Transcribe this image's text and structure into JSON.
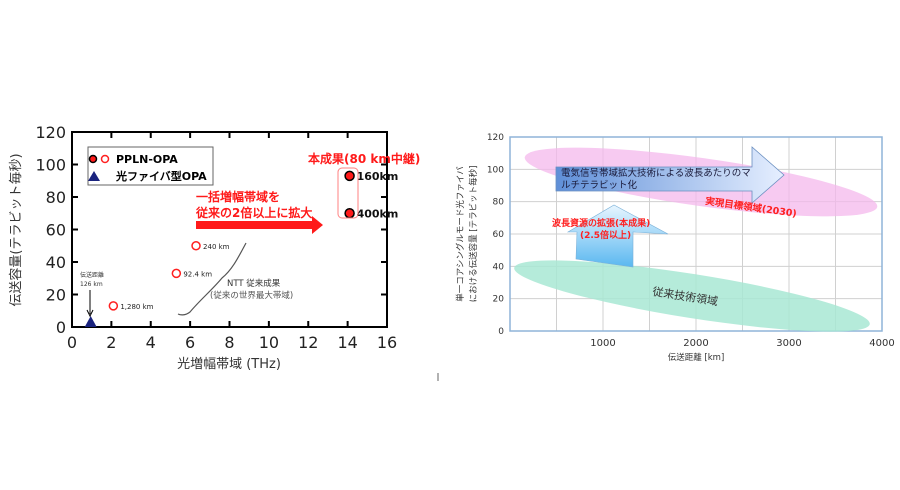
{
  "chart_data": [
    {
      "type": "scatter",
      "xlabel": "光増幅帯域 (THz)",
      "ylabel": "伝送容量(テラビット毎秒)",
      "xlim": [
        0,
        16
      ],
      "ylim": [
        0,
        120
      ],
      "xticks": [
        "0",
        "2",
        "4",
        "6",
        "8",
        "10",
        "12",
        "14",
        "16"
      ],
      "yticks": [
        "0",
        "20",
        "40",
        "60",
        "80",
        "100",
        "120"
      ],
      "grid": false,
      "legend": {
        "placement": "top-left",
        "entries": [
          "PPLN-OPA",
          "光ファイバ型OPA"
        ]
      },
      "series": [
        {
          "name": "PPLN-OPA",
          "marker": "open-circle",
          "color": "#ff2020",
          "points": [
            {
              "x": 2.1,
              "y": 13,
              "label": "1,280 km"
            },
            {
              "x": 5.3,
              "y": 33,
              "label": "92.4 km"
            },
            {
              "x": 6.3,
              "y": 50,
              "label": "240 km"
            }
          ]
        },
        {
          "name": "PPLN-OPA",
          "marker": "filled-circle",
          "color": "#ff1a1a",
          "points": [
            {
              "x": 14.1,
              "y": 93,
              "label": "160km"
            },
            {
              "x": 14.1,
              "y": 70,
              "label": "400km"
            }
          ]
        },
        {
          "name": "光ファイバ型OPA",
          "marker": "triangle",
          "color": "#1a237e",
          "points": [
            {
              "x": 0.95,
              "y": 2.5
            }
          ]
        }
      ],
      "annotations": {
        "result_title": "本成果(80 km中継)",
        "arrow_text_line1": "一括増幅帯域を",
        "arrow_text_line2": "従来の2倍以上に拡大",
        "ntt_line1": "NTT 従来成果",
        "ntt_line2": "(従来の世界最大帯域)",
        "triangle_label_line1": "伝送距離",
        "triangle_label_line2": "126 km"
      }
    },
    {
      "type": "area",
      "xlabel": "伝送距離 [km]",
      "ylabel_line1": "単一コアシングルモード光ファイバ",
      "ylabel_line2": "における伝送容量 [テラビット毎秒]",
      "xlim": [
        0,
        4000
      ],
      "ylim": [
        0,
        120
      ],
      "xticks": [
        "1000",
        "2000",
        "3000",
        "4000"
      ],
      "yticks": [
        "0",
        "20",
        "40",
        "60",
        "80",
        "100",
        "120"
      ],
      "grid": true,
      "regions": [
        {
          "label": "実現目標領域(2030)",
          "color": "#f4b8ec"
        },
        {
          "label": "従来技術領域",
          "color": "#a8e8d4"
        }
      ],
      "annotations": {
        "big_arrow_line1": "電気信号帯域拡大技術による波長あたりのマ",
        "big_arrow_line2": "ルチテラビット化",
        "up_arrow_line1": "波長資源の拡張(本成果)",
        "up_arrow_line2": "(2.5倍以上)"
      }
    }
  ]
}
